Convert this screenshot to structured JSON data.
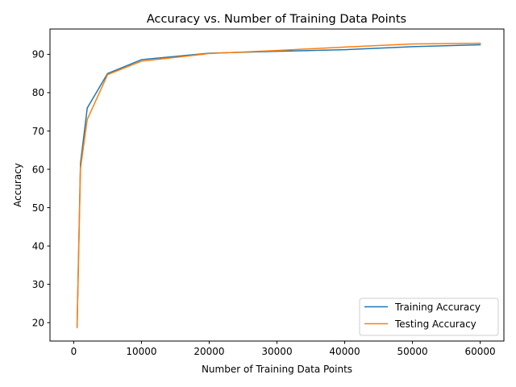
{
  "chart_data": {
    "type": "line",
    "title": "Accuracy vs. Number of Training Data Points",
    "xlabel": "Number of Training Data Points",
    "ylabel": "Accuracy",
    "xlim": [
      -3500,
      63500
    ],
    "ylim": [
      15.2,
      96.6
    ],
    "xticks": [
      0,
      10000,
      20000,
      30000,
      40000,
      50000,
      60000
    ],
    "yticks": [
      20,
      30,
      40,
      50,
      60,
      70,
      80,
      90
    ],
    "grid": false,
    "legend": "lower-right",
    "series": [
      {
        "name": "Training Accuracy",
        "color": "#1f77b4",
        "x": [
          500,
          1000,
          2000,
          5000,
          10000,
          20000,
          30000,
          40000,
          50000,
          60000
        ],
        "y": [
          19.2,
          61.5,
          76.0,
          85.0,
          88.6,
          90.3,
          90.8,
          91.2,
          92.0,
          92.5
        ]
      },
      {
        "name": "Testing Accuracy",
        "color": "#ff7f0e",
        "x": [
          500,
          1000,
          2000,
          5000,
          10000,
          20000,
          30000,
          40000,
          50000,
          60000
        ],
        "y": [
          18.7,
          60.2,
          73.0,
          84.7,
          88.2,
          90.2,
          91.0,
          91.9,
          92.7,
          92.9
        ]
      }
    ]
  }
}
